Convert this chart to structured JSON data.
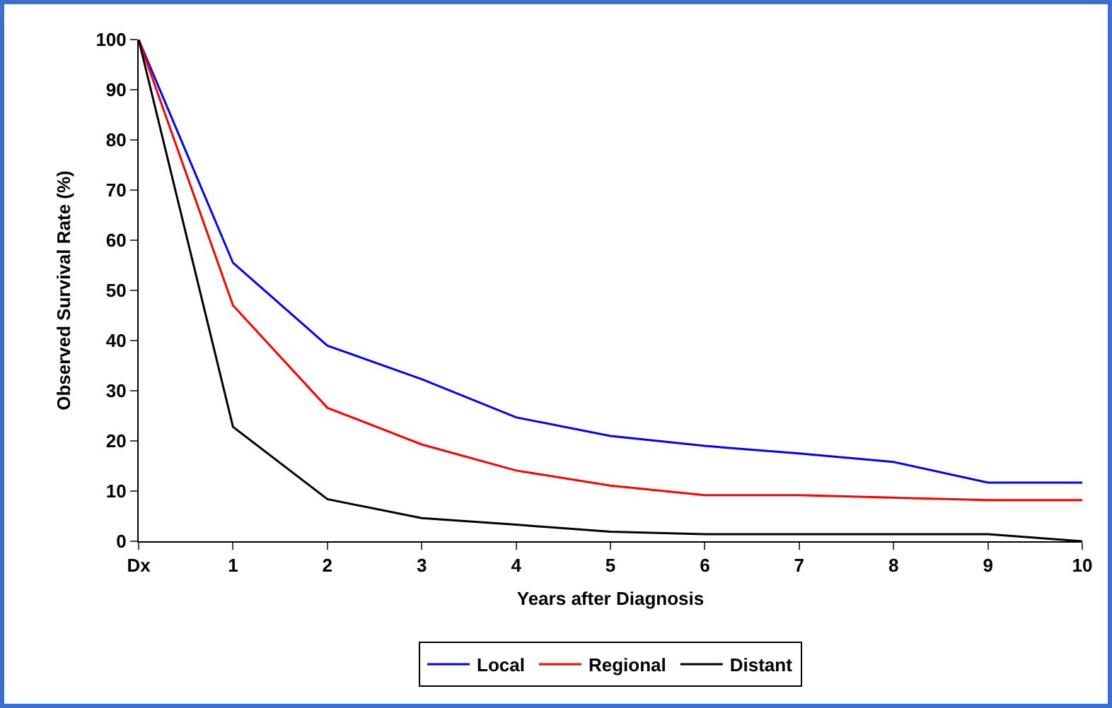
{
  "chart_data": {
    "type": "line",
    "xlabel": "Years after Diagnosis",
    "ylabel": "Observed Survival Rate (%)",
    "categories": [
      "Dx",
      "1",
      "2",
      "3",
      "4",
      "5",
      "6",
      "7",
      "8",
      "9",
      "10"
    ],
    "series": [
      {
        "name": "Local",
        "color": "#0000ff",
        "values": [
          100,
          55.5,
          39,
          32.3,
          24.7,
          21,
          19,
          17.5,
          15.8,
          11.7,
          11.7
        ]
      },
      {
        "name": "Regional",
        "color": "#ff0000",
        "values": [
          100,
          47,
          26.6,
          19.3,
          14.1,
          11.1,
          9.2,
          9.2,
          8.7,
          8.2,
          8.2
        ]
      },
      {
        "name": "Distant",
        "color": "#000000",
        "values": [
          100,
          22.8,
          8.4,
          4.6,
          3.3,
          1.9,
          1.4,
          1.4,
          1.4,
          1.4,
          0
        ]
      }
    ],
    "ylim": [
      0,
      100
    ],
    "yticks": [
      0,
      10,
      20,
      30,
      40,
      50,
      60,
      70,
      80,
      90,
      100
    ],
    "grid": false,
    "legend": "bottom",
    "marker": "none",
    "line_style": "solid"
  }
}
